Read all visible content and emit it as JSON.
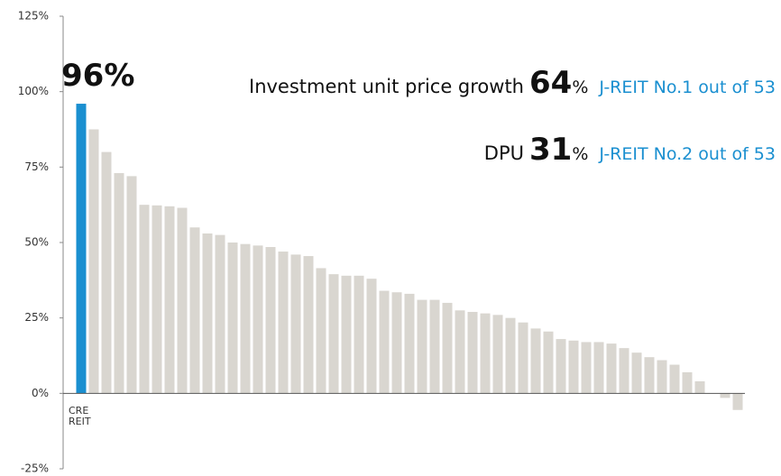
{
  "chart_data": {
    "type": "bar",
    "highlight_label": "96%",
    "annotations": [
      [
        "Investment unit price growth",
        "64",
        "%",
        "J-REIT No.1 out of 53"
      ],
      [
        "DPU",
        "31",
        "%",
        "J-REIT No.2 out of 53"
      ]
    ],
    "categories": [
      "CRE REIT",
      null,
      null,
      null,
      null,
      null,
      null,
      null,
      null,
      null,
      null,
      null,
      null,
      null,
      null,
      null,
      null,
      null,
      null,
      null,
      null,
      null,
      null,
      null,
      null,
      null,
      null,
      null,
      null,
      null,
      null,
      null,
      null,
      null,
      null,
      null,
      null,
      null,
      null,
      null,
      null,
      null,
      null,
      null,
      null,
      null,
      null,
      null,
      null,
      null,
      null,
      null,
      null
    ],
    "values": [
      96,
      87.5,
      80,
      73,
      72,
      62.5,
      62.3,
      62,
      61.5,
      55,
      53,
      52.5,
      50,
      49.5,
      49,
      48.5,
      47,
      46,
      45.5,
      41.5,
      39.5,
      39,
      39,
      38,
      34,
      33.5,
      33,
      31,
      31,
      30,
      27.5,
      27,
      26.5,
      26,
      25,
      23.5,
      21.5,
      20.5,
      18,
      17.5,
      17,
      17,
      16.5,
      15,
      13.5,
      12,
      11,
      9.5,
      7,
      4,
      0,
      -1.5,
      -5.5
    ],
    "color": "#d9d6d0",
    "highlight_color": "#1a8fd0",
    "ylim": [
      -25,
      125
    ],
    "yticks": [
      {
        "value": -25,
        "label": "-25%"
      },
      {
        "value": 0,
        "label": "0%"
      },
      {
        "value": 25,
        "label": "25%"
      },
      {
        "value": 50,
        "label": "50%"
      },
      {
        "value": 75,
        "label": "75%"
      },
      {
        "value": 100,
        "label": "100%"
      },
      {
        "value": 125,
        "label": "125%"
      }
    ],
    "grid": false
  }
}
